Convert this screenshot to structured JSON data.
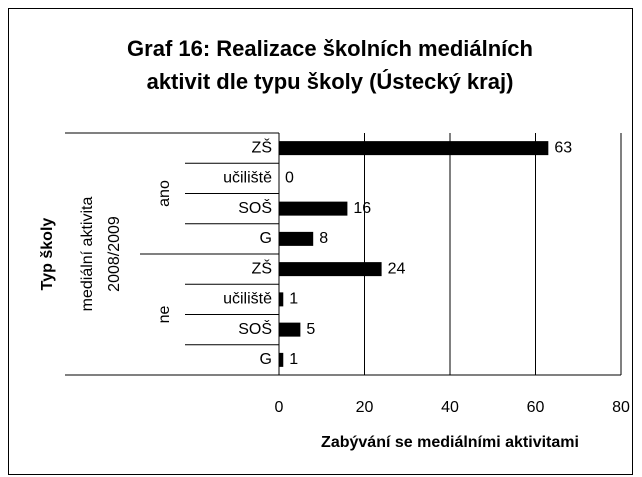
{
  "chart_data": {
    "type": "bar",
    "orientation": "horizontal",
    "title": [
      "Graf 16: Realizace školních mediálních",
      "aktivit dle typu školy (Ústecký kraj)"
    ],
    "x_label": "Zabývání se mediálními aktivitami",
    "y_label": "Typ školy",
    "group_label": [
      "mediální aktivita",
      "2008/2009"
    ],
    "groups": [
      {
        "name": "ano",
        "categories": [
          "ZŠ",
          "učiliště",
          "SOŠ",
          "G"
        ],
        "values": [
          63,
          0,
          16,
          8
        ]
      },
      {
        "name": "ne",
        "categories": [
          "ZŠ",
          "učiliště",
          "SOŠ",
          "G"
        ],
        "values": [
          24,
          1,
          5,
          1
        ]
      }
    ],
    "color": "#000000",
    "xlim": [
      0,
      80
    ],
    "xticks": [
      0,
      20,
      40,
      60,
      80
    ],
    "grid": true
  }
}
